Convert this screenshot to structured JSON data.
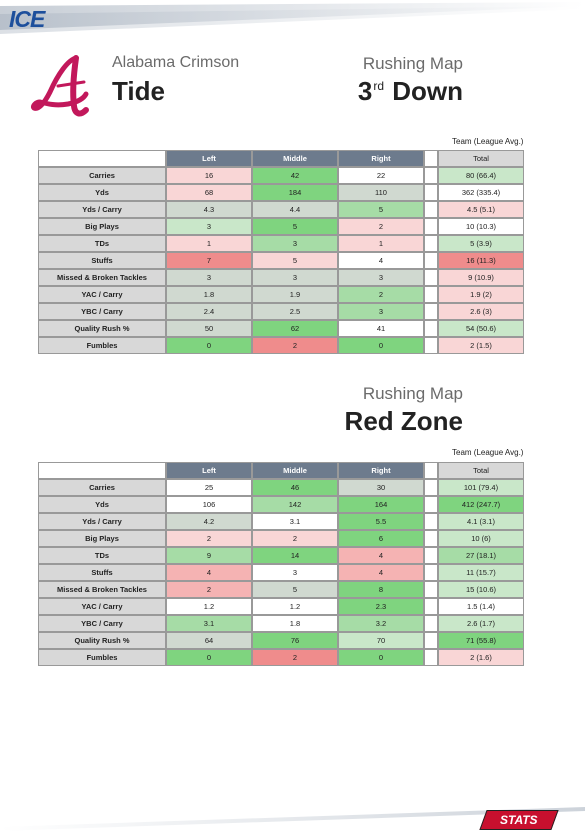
{
  "brand": {
    "ice": "ICE",
    "stats": "STATS"
  },
  "team": {
    "line1": "Alabama Crimson",
    "line2": "Tide"
  },
  "colors": {
    "green_strong": "#7fd47f",
    "green": "#a6dca6",
    "green_light": "#c9e7c9",
    "white": "#ffffff",
    "pink_light": "#f9d6d6",
    "pink": "#f5b3b3",
    "red": "#ef8c8c",
    "gray": "#d0d9d0"
  },
  "section1": {
    "title": "Rushing Map",
    "subtitle_pre": "3",
    "subtitle_sup": "rd",
    "subtitle_post": "Down",
    "team_avg_label": "Team (League Avg.)",
    "headers": [
      "Left",
      "Middle",
      "Right"
    ],
    "total_header": "Total",
    "rows": [
      {
        "label": "Carries",
        "cells": [
          "16",
          "42",
          "22"
        ],
        "total": "80 (66.4)",
        "colors": [
          "pink_light",
          "green_strong",
          "white"
        ],
        "total_color": "green_light"
      },
      {
        "label": "Yds",
        "cells": [
          "68",
          "184",
          "110"
        ],
        "total": "362 (335.4)",
        "colors": [
          "pink_light",
          "green_strong",
          "gray"
        ],
        "total_color": "white"
      },
      {
        "label": "Yds / Carry",
        "cells": [
          "4.3",
          "4.4",
          "5"
        ],
        "total": "4.5 (5.1)",
        "colors": [
          "gray",
          "gray",
          "green"
        ],
        "total_color": "pink_light"
      },
      {
        "label": "Big Plays",
        "cells": [
          "3",
          "5",
          "2"
        ],
        "total": "10 (10.3)",
        "colors": [
          "green_light",
          "green_strong",
          "pink_light"
        ],
        "total_color": "white"
      },
      {
        "label": "TDs",
        "cells": [
          "1",
          "3",
          "1"
        ],
        "total": "5 (3.9)",
        "colors": [
          "pink_light",
          "green",
          "pink_light"
        ],
        "total_color": "green_light"
      },
      {
        "label": "Stuffs",
        "cells": [
          "7",
          "5",
          "4"
        ],
        "total": "16 (11.3)",
        "colors": [
          "red",
          "pink_light",
          "white"
        ],
        "total_color": "red"
      },
      {
        "label": "Missed & Broken Tackles",
        "cells": [
          "3",
          "3",
          "3"
        ],
        "total": "9 (10.9)",
        "colors": [
          "gray",
          "gray",
          "gray"
        ],
        "total_color": "pink_light"
      },
      {
        "label": "YAC / Carry",
        "cells": [
          "1.8",
          "1.9",
          "2"
        ],
        "total": "1.9 (2)",
        "colors": [
          "gray",
          "gray",
          "green"
        ],
        "total_color": "pink_light"
      },
      {
        "label": "YBC / Carry",
        "cells": [
          "2.4",
          "2.5",
          "3"
        ],
        "total": "2.6 (3)",
        "colors": [
          "gray",
          "gray",
          "green"
        ],
        "total_color": "pink_light"
      },
      {
        "label": "Quality Rush %",
        "cells": [
          "50",
          "62",
          "41"
        ],
        "total": "54 (50.6)",
        "colors": [
          "gray",
          "green_strong",
          "white"
        ],
        "total_color": "green_light"
      },
      {
        "label": "Fumbles",
        "cells": [
          "0",
          "2",
          "0"
        ],
        "total": "2 (1.5)",
        "colors": [
          "green_strong",
          "red",
          "green_strong"
        ],
        "total_color": "pink_light"
      }
    ]
  },
  "section2": {
    "title": "Rushing Map",
    "subtitle": "Red Zone",
    "team_avg_label": "Team (League Avg.)",
    "headers": [
      "Left",
      "Middle",
      "Right"
    ],
    "total_header": "Total",
    "rows": [
      {
        "label": "Carries",
        "cells": [
          "25",
          "46",
          "30"
        ],
        "total": "101 (79.4)",
        "colors": [
          "white",
          "green_strong",
          "gray"
        ],
        "total_color": "green_light"
      },
      {
        "label": "Yds",
        "cells": [
          "106",
          "142",
          "164"
        ],
        "total": "412 (247.7)",
        "colors": [
          "white",
          "green",
          "green_strong"
        ],
        "total_color": "green_strong"
      },
      {
        "label": "Yds / Carry",
        "cells": [
          "4.2",
          "3.1",
          "5.5"
        ],
        "total": "4.1 (3.1)",
        "colors": [
          "gray",
          "white",
          "green_strong"
        ],
        "total_color": "green_light"
      },
      {
        "label": "Big Plays",
        "cells": [
          "2",
          "2",
          "6"
        ],
        "total": "10 (6)",
        "colors": [
          "pink_light",
          "pink_light",
          "green_strong"
        ],
        "total_color": "green_light"
      },
      {
        "label": "TDs",
        "cells": [
          "9",
          "14",
          "4"
        ],
        "total": "27 (18.1)",
        "colors": [
          "green",
          "green_strong",
          "pink"
        ],
        "total_color": "green"
      },
      {
        "label": "Stuffs",
        "cells": [
          "4",
          "3",
          "4"
        ],
        "total": "11 (15.7)",
        "colors": [
          "pink",
          "white",
          "pink"
        ],
        "total_color": "green_light"
      },
      {
        "label": "Missed & Broken Tackles",
        "cells": [
          "2",
          "5",
          "8"
        ],
        "total": "15 (10.6)",
        "colors": [
          "pink",
          "gray",
          "green_strong"
        ],
        "total_color": "green_light"
      },
      {
        "label": "YAC / Carry",
        "cells": [
          "1.2",
          "1.2",
          "2.3"
        ],
        "total": "1.5 (1.4)",
        "colors": [
          "white",
          "white",
          "green_strong"
        ],
        "total_color": "white"
      },
      {
        "label": "YBC / Carry",
        "cells": [
          "3.1",
          "1.8",
          "3.2"
        ],
        "total": "2.6 (1.7)",
        "colors": [
          "green",
          "white",
          "green"
        ],
        "total_color": "green_light"
      },
      {
        "label": "Quality Rush %",
        "cells": [
          "64",
          "76",
          "70"
        ],
        "total": "71 (55.8)",
        "colors": [
          "gray",
          "green_strong",
          "green_light"
        ],
        "total_color": "green_strong"
      },
      {
        "label": "Fumbles",
        "cells": [
          "0",
          "2",
          "0"
        ],
        "total": "2 (1.6)",
        "colors": [
          "green_strong",
          "red",
          "green_strong"
        ],
        "total_color": "pink_light"
      }
    ]
  }
}
